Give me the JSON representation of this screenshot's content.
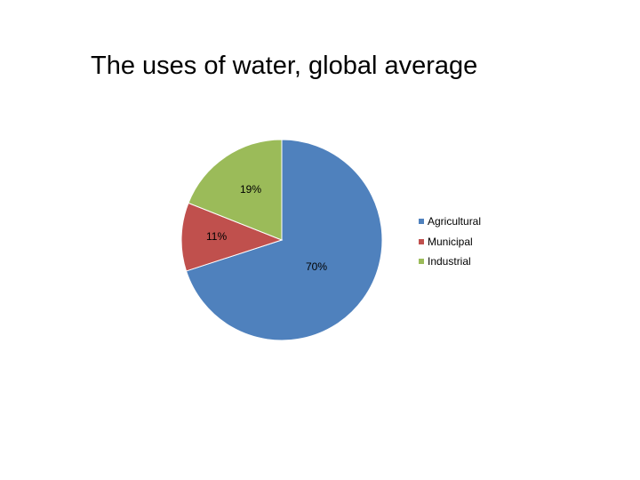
{
  "chart_data": {
    "type": "pie",
    "title": "The uses of water, global average",
    "categories": [
      "Agricultural",
      "Municipal",
      "Industrial"
    ],
    "values": [
      70,
      11,
      19
    ],
    "data_labels": [
      "70%",
      "11%",
      "19%"
    ],
    "colors": [
      "#4F81BD",
      "#C0504D",
      "#9BBB59"
    ],
    "legend_position": "right"
  }
}
